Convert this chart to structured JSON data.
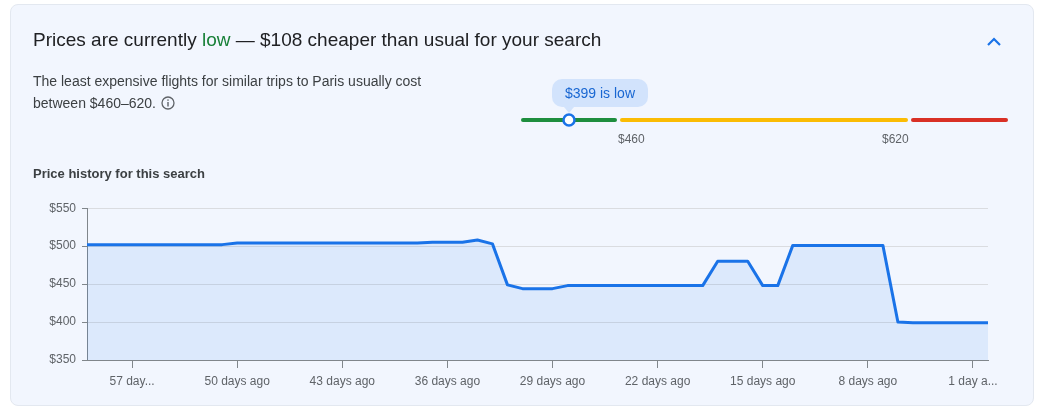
{
  "chart_data": {
    "type": "area",
    "title": "Prices are currently low — $108 cheaper than usual for your search",
    "subtitle": "The least expensive flights for similar trips to Paris usually cost between $460–620.",
    "annotations": [
      "$399 is low",
      "$460",
      "$620",
      "Price history for this search"
    ],
    "series": [
      {
        "color": "#1a73e8",
        "x": [
          -60,
          -51,
          -50,
          -38,
          -37,
          -35,
          -34,
          -33,
          -32,
          -31,
          -29,
          -28,
          -19,
          -18,
          -16,
          -15,
          -14,
          -13,
          -7,
          -6,
          -5,
          0
        ],
        "values": [
          502,
          502,
          504,
          504,
          505,
          505,
          508,
          503,
          449,
          444,
          444,
          448,
          448,
          480,
          480,
          448,
          448,
          501,
          501,
          400,
          399,
          399
        ]
      }
    ],
    "xlim": [
      -60,
      0
    ],
    "xticks": [
      {
        "value": -57,
        "label": "57 day..."
      },
      {
        "value": -50,
        "label": "50 days ago"
      },
      {
        "value": -43,
        "label": "43 days ago"
      },
      {
        "value": -36,
        "label": "36 days ago"
      },
      {
        "value": -29,
        "label": "29 days ago"
      },
      {
        "value": -22,
        "label": "22 days ago"
      },
      {
        "value": -15,
        "label": "15 days ago"
      },
      {
        "value": -8,
        "label": "8 days ago"
      },
      {
        "value": -1,
        "label": "1 day a..."
      }
    ],
    "ylim": [
      350,
      550
    ],
    "yticks": [
      {
        "value": 350,
        "label": "$350"
      },
      {
        "value": 400,
        "label": "$400"
      },
      {
        "value": 450,
        "label": "$450"
      },
      {
        "value": 500,
        "label": "$500"
      },
      {
        "value": 550,
        "label": "$550"
      }
    ],
    "grid": "y",
    "legend": false
  }
}
